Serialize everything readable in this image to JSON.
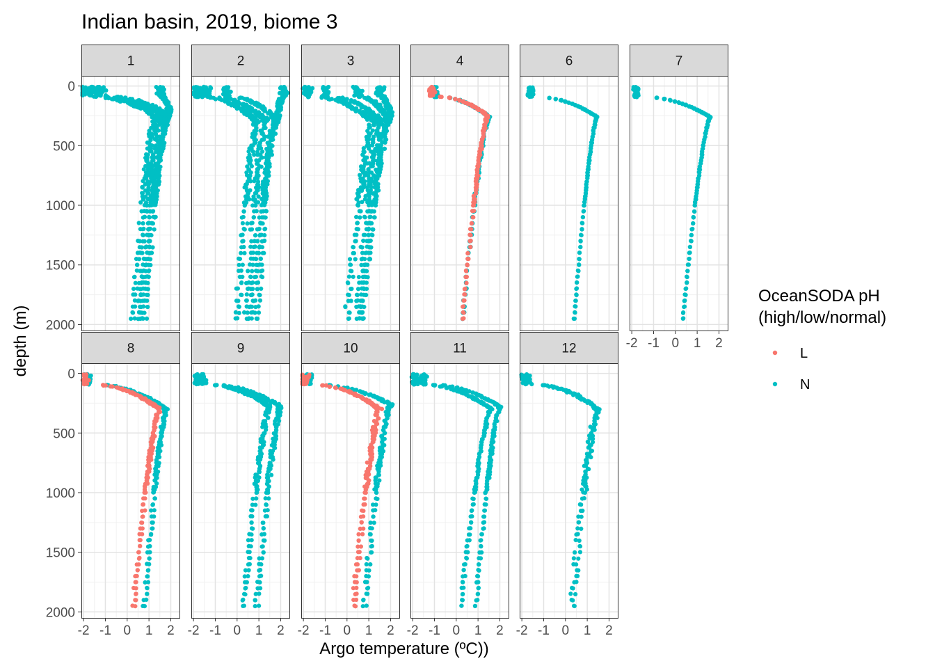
{
  "chart_data": {
    "type": "scatter",
    "title": "Indian basin, 2019, biome 3",
    "xlabel": "Argo temperature (ºC))",
    "ylabel": "depth (m)",
    "xlim": [
      -2.1,
      2.4
    ],
    "ylim": [
      2050,
      -85
    ],
    "x_ticks": [
      -2,
      -1,
      0,
      1,
      2
    ],
    "x_tick_labels": [
      "-2",
      "-1",
      "0",
      "1",
      "2"
    ],
    "y_ticks": [
      0,
      500,
      1000,
      1500,
      2000
    ],
    "y_tick_labels": [
      "0",
      "500",
      "1000",
      "1500",
      "2000"
    ],
    "grid": true,
    "legend": {
      "title": [
        "OceanSODA pH",
        "(high/low/normal)"
      ],
      "position": "right",
      "entries": [
        {
          "label": "L",
          "color": "#F8766D"
        },
        {
          "label": "N",
          "color": "#00BFC4"
        }
      ]
    },
    "facets": [
      {
        "label": "1",
        "profiles": [
          {
            "cls": "N",
            "surf": -2.0,
            "tc": 1.3,
            "zc": 250,
            "deep": 0.3,
            "jit": 0.14,
            "zmax": 1980
          },
          {
            "cls": "N",
            "surf": -1.6,
            "tc": 1.55,
            "zc": 240,
            "deep": 0.55,
            "jit": 0.14,
            "zmax": 1980
          },
          {
            "cls": "N",
            "surf": -1.2,
            "tc": 1.8,
            "zc": 230,
            "deep": 0.8,
            "jit": 0.14,
            "zmax": 1980
          },
          {
            "cls": "N",
            "surf": 1.5,
            "tc": 1.95,
            "zc": 220,
            "deep": 0.6,
            "jit": 0.12,
            "zmax": 1980
          }
        ]
      },
      {
        "label": "2",
        "profiles": [
          {
            "cls": "N",
            "surf": -1.8,
            "tc": 0.9,
            "zc": 300,
            "deep": 0.0,
            "jit": 0.14,
            "zmax": 1980
          },
          {
            "cls": "N",
            "surf": -1.4,
            "tc": 1.3,
            "zc": 280,
            "deep": 0.45,
            "jit": 0.14,
            "zmax": 1980
          },
          {
            "cls": "N",
            "surf": -0.5,
            "tc": 1.7,
            "zc": 260,
            "deep": 0.9,
            "jit": 0.14,
            "zmax": 1980
          },
          {
            "cls": "N",
            "surf": 2.1,
            "tc": 1.9,
            "zc": 240,
            "deep": 0.6,
            "jit": 0.12,
            "zmax": 1980
          }
        ]
      },
      {
        "label": "3",
        "profiles": [
          {
            "cls": "N",
            "surf": -1.8,
            "tc": 1.2,
            "zc": 300,
            "deep": 0.0,
            "jit": 0.14,
            "zmax": 1980
          },
          {
            "cls": "N",
            "surf": -1.0,
            "tc": 1.5,
            "zc": 280,
            "deep": 0.5,
            "jit": 0.14,
            "zmax": 1980
          },
          {
            "cls": "N",
            "surf": 0.5,
            "tc": 1.85,
            "zc": 260,
            "deep": 0.7,
            "jit": 0.14,
            "zmax": 1980
          },
          {
            "cls": "N",
            "surf": 1.5,
            "tc": 2.0,
            "zc": 240,
            "deep": 0.65,
            "jit": 0.12,
            "zmax": 1980
          }
        ]
      },
      {
        "label": "4",
        "profiles": [
          {
            "cls": "N",
            "surf": -1.0,
            "tc": 1.5,
            "zc": 260,
            "deep": 0.3,
            "jit": 0.05,
            "zmax": 1980
          },
          {
            "cls": "L",
            "surf": -1.1,
            "tc": 1.45,
            "zc": 250,
            "deep": 0.3,
            "jit": 0.05,
            "zmax": 1980
          }
        ]
      },
      {
        "label": "6",
        "profiles": [
          {
            "cls": "N",
            "surf": -1.6,
            "tc": 1.45,
            "zc": 260,
            "deep": 0.4,
            "jit": 0.02,
            "zmax": 1980
          }
        ]
      },
      {
        "label": "7",
        "profiles": [
          {
            "cls": "N",
            "surf": -1.8,
            "tc": 1.6,
            "zc": 260,
            "deep": 0.35,
            "jit": 0.02,
            "zmax": 1980
          }
        ]
      },
      {
        "label": "8",
        "profiles": [
          {
            "cls": "N",
            "surf": -1.8,
            "tc": 1.8,
            "zc": 300,
            "deep": 0.8,
            "jit": 0.08,
            "zmax": 1980
          },
          {
            "cls": "L",
            "surf": -1.9,
            "tc": 1.5,
            "zc": 300,
            "deep": 0.3,
            "jit": 0.08,
            "zmax": 1980
          }
        ]
      },
      {
        "label": "9",
        "profiles": [
          {
            "cls": "N",
            "surf": -1.8,
            "tc": 1.5,
            "zc": 280,
            "deep": 0.3,
            "jit": 0.1,
            "zmax": 1980
          },
          {
            "cls": "N",
            "surf": -1.6,
            "tc": 2.0,
            "zc": 280,
            "deep": 0.9,
            "jit": 0.1,
            "zmax": 1980
          }
        ]
      },
      {
        "label": "10",
        "profiles": [
          {
            "cls": "N",
            "surf": -1.8,
            "tc": 2.0,
            "zc": 260,
            "deep": 0.8,
            "jit": 0.1,
            "zmax": 1980
          },
          {
            "cls": "L",
            "surf": -1.9,
            "tc": 1.5,
            "zc": 300,
            "deep": 0.3,
            "jit": 0.1,
            "zmax": 1980
          }
        ]
      },
      {
        "label": "11",
        "profiles": [
          {
            "cls": "N",
            "surf": -1.9,
            "tc": 1.6,
            "zc": 300,
            "deep": 0.2,
            "jit": 0.06,
            "zmax": 1980
          },
          {
            "cls": "N",
            "surf": -1.5,
            "tc": 2.0,
            "zc": 280,
            "deep": 0.9,
            "jit": 0.06,
            "zmax": 1980
          }
        ]
      },
      {
        "label": "12",
        "profiles": [
          {
            "cls": "N",
            "surf": -1.8,
            "tc": 1.5,
            "zc": 300,
            "deep": 0.3,
            "jit": 0.14,
            "zmax": 1980
          }
        ]
      }
    ]
  }
}
